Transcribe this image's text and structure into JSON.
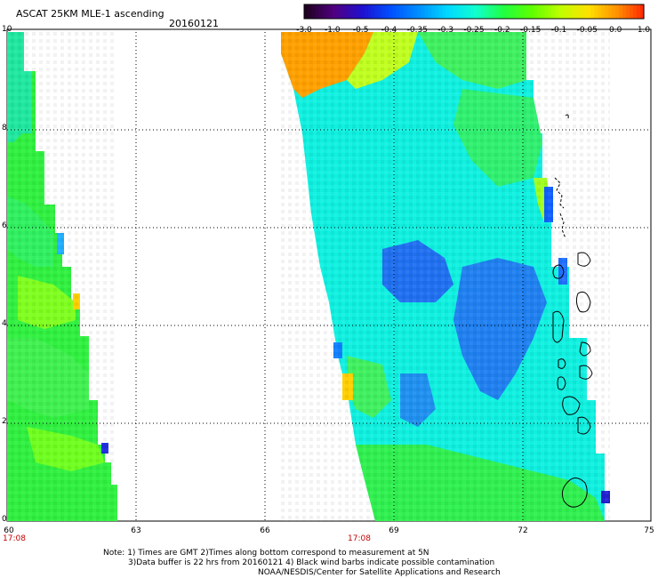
{
  "header": {
    "title": "ASCAT 25KM MLE-1 ascending",
    "date": "20160121"
  },
  "colorbar": {
    "labels": [
      "-3.0",
      "-1.0",
      "-0.5",
      "-0.4",
      "-0.35",
      "-0.3",
      "-0.25",
      "-0.2",
      "-0.15",
      "-0.1",
      "-0.05",
      "0.0",
      "1.0"
    ],
    "colors": [
      "#200020",
      "#500080",
      "#2010d0",
      "#0050ff",
      "#0090ff",
      "#00d8ff",
      "#10ffd0",
      "#20ff40",
      "#60ff00",
      "#c0ff00",
      "#ffe000",
      "#ff9000",
      "#ff2000"
    ]
  },
  "axes": {
    "y_ticks": [
      "10",
      "8",
      "6",
      "4",
      "2",
      "0"
    ],
    "x_ticks": [
      "60",
      "63",
      "66",
      "69",
      "72",
      "75"
    ]
  },
  "times": {
    "left": "17:08",
    "right": "17:08"
  },
  "notes": {
    "line1": "Note: 1) Times are GMT 2)Times along bottom correspond to measurement at 5N",
    "line2": "3)Data buffer is 22 hrs from 20160121 4) Black wind barbs indicate possible contamination",
    "line3": "NOAA/NESDIS/Center for Satellite Applications and Research"
  }
}
